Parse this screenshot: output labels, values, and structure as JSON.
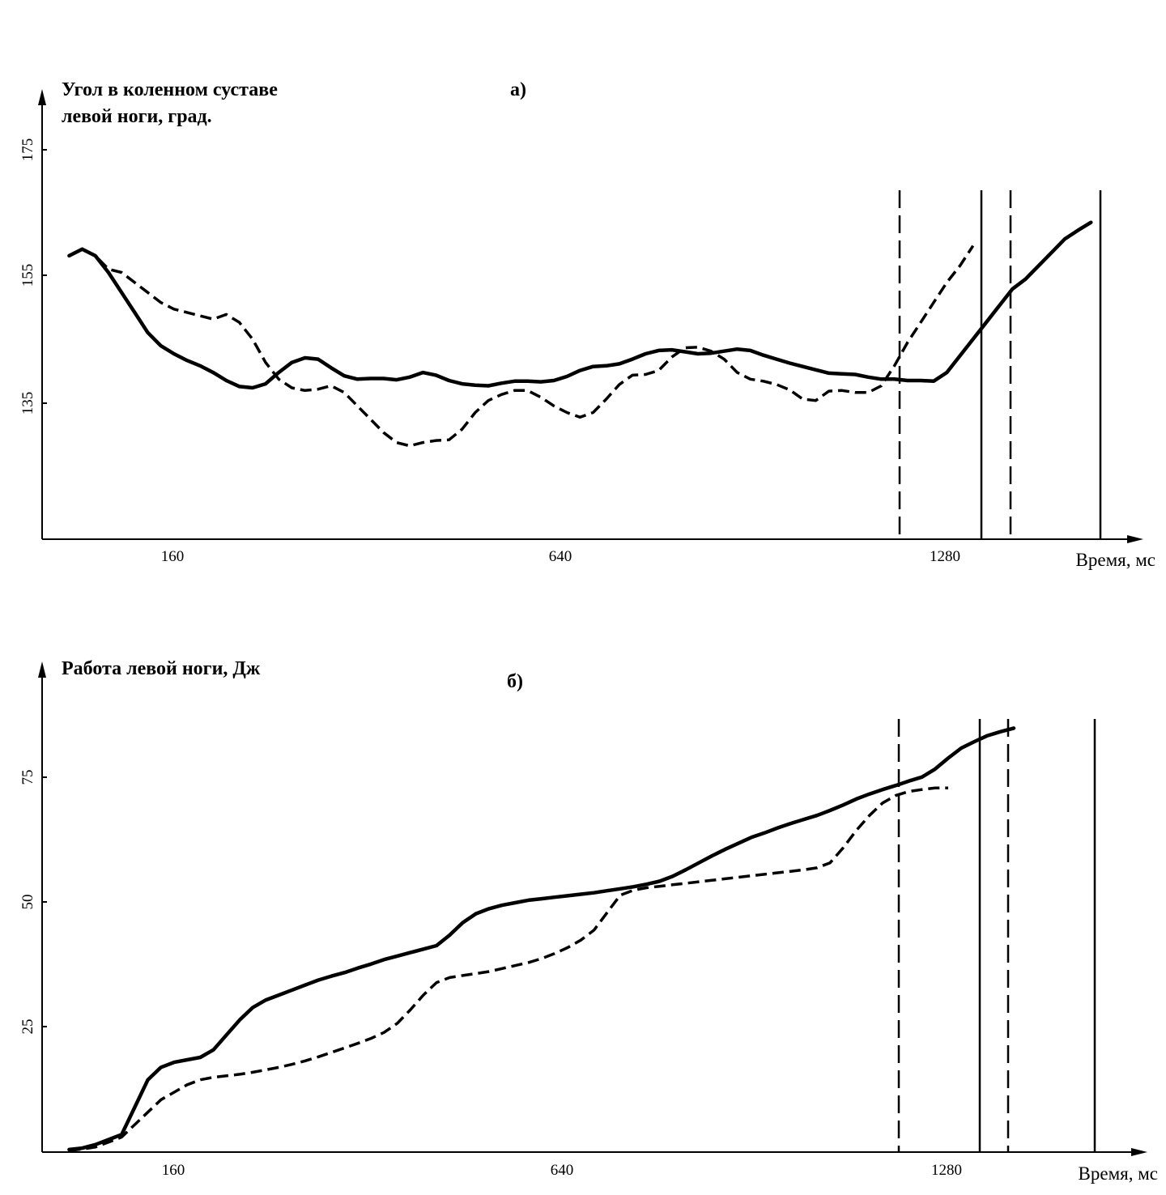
{
  "chart_data": [
    {
      "type": "line",
      "panel_label": "а)",
      "title_lines": [
        "Угол в коленном суставе",
        "левой ноги, град."
      ],
      "xlabel": "Время, мс",
      "ylabel": "",
      "xlim": [
        -40,
        1640
      ],
      "ylim": [
        114.5,
        182
      ],
      "xticks": [
        160,
        640,
        1280
      ],
      "yticks": [
        135,
        155,
        175
      ],
      "grid": false,
      "series": [
        {
          "style": "solid",
          "x": [
            0,
            20,
            40,
            60,
            80,
            100,
            120,
            140,
            160,
            180,
            200,
            220,
            240,
            260,
            280,
            300,
            320,
            340,
            360,
            380,
            400,
            420,
            440,
            460,
            480,
            500,
            520,
            540,
            560,
            580,
            600,
            620,
            640,
            660,
            680,
            700,
            720,
            740,
            760,
            780,
            800,
            820,
            840,
            860,
            880,
            900,
            920,
            940,
            960,
            980,
            1000,
            1020,
            1040,
            1060,
            1080,
            1100,
            1120,
            1140,
            1160,
            1180,
            1200,
            1220,
            1240,
            1260,
            1280,
            1300,
            1320,
            1340,
            1360,
            1380,
            1400,
            1420,
            1440,
            1460,
            1480,
            1500,
            1520,
            1540,
            1560
          ],
          "values": [
            157,
            158,
            157,
            154.5,
            151.5,
            148.5,
            145.5,
            143.5,
            142.3,
            141.3,
            140.5,
            139.5,
            138.3,
            137.4,
            137.2,
            137.8,
            139.5,
            141,
            141.7,
            141.5,
            140.2,
            139,
            138.5,
            138.6,
            138.6,
            138.4,
            138.8,
            139.5,
            139.1,
            138.3,
            137.8,
            137.6,
            137.5,
            137.9,
            138.2,
            138.2,
            138.1,
            138.3,
            138.9,
            139.8,
            140.4,
            140.5,
            140.8,
            141.5,
            142.3,
            142.8,
            142.9,
            142.6,
            142.3,
            142.4,
            142.7,
            143,
            142.8,
            142.1,
            141.5,
            140.9,
            140.4,
            139.9,
            139.4,
            139.3,
            139.2,
            138.8,
            138.5,
            138.5,
            138.3,
            138.3,
            138.2,
            139.5,
            142,
            144.5,
            147,
            149.5,
            152,
            153.5,
            155.5,
            157.5,
            159.5,
            160.8,
            162
          ]
        },
        {
          "style": "dashed",
          "x": [
            0,
            20,
            40,
            60,
            80,
            100,
            120,
            140,
            160,
            180,
            200,
            220,
            240,
            260,
            280,
            300,
            320,
            340,
            360,
            380,
            400,
            420,
            440,
            460,
            480,
            500,
            520,
            540,
            560,
            580,
            600,
            620,
            640,
            660,
            680,
            700,
            720,
            740,
            760,
            780,
            800,
            820,
            840,
            860,
            880,
            900,
            920,
            940,
            960,
            980,
            1000,
            1020,
            1040,
            1060,
            1080,
            1100,
            1120,
            1140,
            1160,
            1180,
            1200,
            1220,
            1240,
            1260,
            1280,
            1300,
            1320,
            1340,
            1360,
            1380
          ],
          "values": [
            157,
            158,
            157,
            155,
            154.5,
            153,
            151.5,
            150,
            149,
            148.5,
            148,
            147.5,
            148.2,
            147,
            144.5,
            141,
            138.5,
            137.2,
            136.8,
            137,
            137.5,
            136.5,
            134.5,
            132.5,
            130.5,
            129,
            128.5,
            129,
            129.3,
            129.4,
            131,
            133.5,
            135.3,
            136.2,
            136.8,
            136.8,
            135.8,
            134.5,
            133.5,
            132.8,
            133.5,
            135.5,
            137.7,
            139.1,
            139.2,
            139.8,
            141.8,
            143.2,
            143.3,
            142.7,
            141.5,
            139.5,
            138.5,
            138.2,
            137.7,
            136.9,
            135.5,
            135.3,
            136.7,
            136.8,
            136.5,
            136.5,
            137.5,
            140.5,
            144,
            147,
            150,
            153,
            155.5,
            158.5
          ]
        }
      ],
      "vertical_lines": [
        {
          "x": 1200,
          "style": "dashed"
        },
        {
          "x": 1300,
          "style": "solid"
        },
        {
          "x": 1336,
          "style": "dashed"
        },
        {
          "x": 1449,
          "style": "solid"
        }
      ]
    },
    {
      "type": "line",
      "panel_label": "б)",
      "title_lines": [
        "Работа левой ноги, Дж"
      ],
      "xlabel": "Время, мс",
      "ylabel": "",
      "xlim": [
        -40,
        1640
      ],
      "ylim": [
        0,
        100
      ],
      "xticks": [
        160,
        640,
        1280
      ],
      "yticks": [
        25,
        50,
        75
      ],
      "grid": false,
      "series": [
        {
          "style": "solid",
          "x": [
            0,
            20,
            40,
            60,
            80,
            100,
            120,
            140,
            160,
            180,
            200,
            220,
            240,
            260,
            280,
            300,
            320,
            340,
            360,
            380,
            400,
            420,
            440,
            460,
            480,
            500,
            520,
            540,
            560,
            580,
            600,
            620,
            640,
            660,
            680,
            700,
            720,
            740,
            760,
            780,
            800,
            820,
            840,
            860,
            880,
            900,
            920,
            940,
            960,
            980,
            1000,
            1020,
            1040,
            1060,
            1080,
            1100,
            1120,
            1140,
            1160,
            1180,
            1200,
            1220,
            1240,
            1260,
            1280,
            1300,
            1320,
            1340,
            1360,
            1380,
            1400,
            1420,
            1440
          ],
          "values": [
            0.5,
            0.8,
            1.5,
            2.5,
            3.5,
            9,
            14.5,
            17,
            18,
            18.5,
            19,
            20.5,
            23.5,
            26.5,
            29,
            30.5,
            31.5,
            32.5,
            33.5,
            34.5,
            35.3,
            36,
            36.9,
            37.7,
            38.6,
            39.3,
            40,
            40.7,
            41.4,
            43.5,
            46,
            47.8,
            48.8,
            49.5,
            50,
            50.5,
            50.8,
            51.1,
            51.4,
            51.7,
            52,
            52.4,
            52.8,
            53.2,
            53.7,
            54.3,
            55.3,
            56.6,
            58,
            59.4,
            60.7,
            61.9,
            63.1,
            64,
            65,
            65.9,
            66.7,
            67.5,
            68.5,
            69.6,
            70.8,
            71.8,
            72.7,
            73.5,
            74.4,
            75.2,
            76.8,
            79,
            81,
            82.3,
            83.5,
            84.3,
            85
          ]
        },
        {
          "style": "dashed",
          "x": [
            0,
            20,
            40,
            60,
            80,
            100,
            120,
            140,
            160,
            180,
            200,
            220,
            240,
            260,
            280,
            300,
            320,
            340,
            360,
            380,
            400,
            420,
            440,
            460,
            480,
            500,
            520,
            540,
            560,
            580,
            600,
            620,
            640,
            660,
            680,
            700,
            720,
            740,
            760,
            780,
            800,
            820,
            840,
            860,
            880,
            900,
            920,
            940,
            960,
            980,
            1000,
            1020,
            1040,
            1060,
            1080,
            1100,
            1120,
            1140,
            1160,
            1180,
            1200,
            1220,
            1240,
            1260,
            1280,
            1300,
            1320,
            1340
          ],
          "values": [
            0.3,
            0.6,
            1,
            2,
            3,
            5.5,
            8,
            10.5,
            12,
            13.5,
            14.5,
            15,
            15.3,
            15.6,
            16,
            16.5,
            17,
            17.6,
            18.3,
            19.1,
            20,
            20.9,
            21.8,
            22.8,
            24,
            25.8,
            28.5,
            31.5,
            34,
            35,
            35.4,
            35.8,
            36.2,
            36.8,
            37.4,
            38,
            38.8,
            39.8,
            41,
            42.5,
            44.5,
            48,
            51.5,
            52.5,
            53,
            53.3,
            53.6,
            53.9,
            54.2,
            54.5,
            54.8,
            55.1,
            55.4,
            55.7,
            56,
            56.3,
            56.6,
            57,
            58,
            61,
            64.5,
            67.5,
            70,
            71.5,
            72.3,
            72.7,
            73,
            73
          ]
        }
      ],
      "vertical_lines": [
        {
          "x": 1200,
          "style": "dashed"
        },
        {
          "x": 1300,
          "style": "solid"
        },
        {
          "x": 1336,
          "style": "dashed"
        },
        {
          "x": 1445,
          "style": "solid"
        }
      ]
    }
  ]
}
